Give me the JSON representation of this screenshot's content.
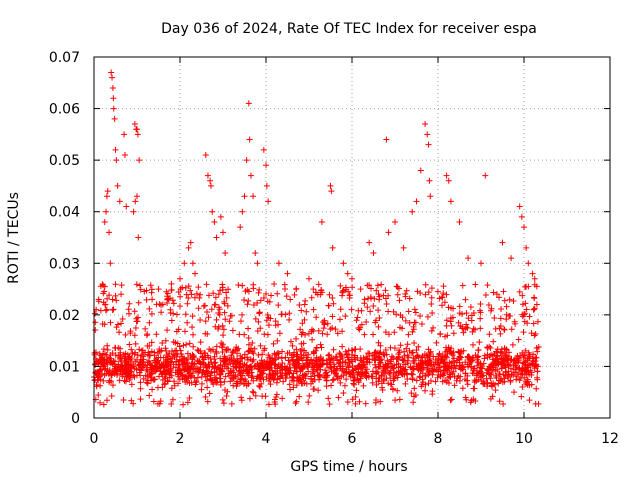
{
  "chart_data": {
    "type": "scatter",
    "title": "Day 036 of 2024, Rate Of TEC Index for receiver espa",
    "xlabel": "GPS time / hours",
    "ylabel": "ROTI / TECUs",
    "xlim": [
      0,
      12
    ],
    "ylim": [
      0,
      0.07
    ],
    "xticks": [
      0,
      2,
      4,
      6,
      8,
      10,
      12
    ],
    "yticks": [
      0,
      0.01,
      0.02,
      0.03,
      0.04,
      0.05,
      0.06,
      0.07
    ],
    "xtick_labels": [
      "0",
      "2",
      "4",
      "6",
      "8",
      "10",
      "12"
    ],
    "ytick_labels": [
      "0",
      "0.01",
      "0.02",
      "0.03",
      "0.04",
      "0.05",
      "0.06",
      "0.07"
    ],
    "grid": true,
    "marker": "plus",
    "color": "#ff0000",
    "series": [
      {
        "name": "ROTI",
        "x": [
          0.4,
          0.42,
          0.44,
          0.45,
          0.46,
          0.48,
          0.5,
          0.52,
          0.55,
          0.6,
          0.25,
          0.28,
          0.3,
          0.32,
          0.35,
          0.38,
          0.7,
          0.72,
          0.75,
          0.95,
          0.98,
          1.0,
          1.02,
          1.05,
          0.92,
          0.96,
          1.0,
          1.03,
          1.5,
          1.6,
          1.8,
          2.0,
          2.1,
          2.2,
          2.25,
          2.3,
          2.35,
          2.6,
          2.65,
          2.7,
          2.72,
          2.75,
          2.8,
          2.85,
          2.95,
          3.0,
          3.05,
          3.4,
          3.45,
          3.5,
          3.55,
          3.6,
          3.62,
          3.65,
          3.7,
          3.75,
          3.8,
          3.95,
          4.0,
          4.02,
          4.05,
          4.3,
          4.5,
          4.7,
          4.9,
          5.0,
          5.1,
          5.3,
          5.5,
          5.52,
          5.55,
          5.8,
          5.9,
          6.0,
          6.2,
          6.4,
          6.5,
          6.8,
          6.85,
          7.0,
          7.2,
          7.4,
          7.5,
          7.6,
          7.7,
          7.75,
          7.78,
          7.8,
          7.82,
          8.2,
          8.25,
          8.3,
          8.5,
          8.7,
          9.0,
          9.1,
          9.5,
          9.7,
          9.9,
          9.95,
          10.0,
          10.05,
          10.1,
          10.2,
          10.25,
          10.3
        ],
        "values": [
          0.067,
          0.066,
          0.064,
          0.062,
          0.06,
          0.058,
          0.052,
          0.05,
          0.045,
          0.042,
          0.038,
          0.04,
          0.043,
          0.044,
          0.036,
          0.03,
          0.055,
          0.051,
          0.041,
          0.057,
          0.056,
          0.056,
          0.055,
          0.05,
          0.04,
          0.042,
          0.043,
          0.035,
          0.025,
          0.022,
          0.026,
          0.027,
          0.03,
          0.033,
          0.034,
          0.03,
          0.028,
          0.051,
          0.047,
          0.046,
          0.045,
          0.04,
          0.038,
          0.035,
          0.039,
          0.036,
          0.032,
          0.037,
          0.04,
          0.043,
          0.05,
          0.061,
          0.054,
          0.047,
          0.043,
          0.032,
          0.03,
          0.052,
          0.049,
          0.045,
          0.042,
          0.03,
          0.028,
          0.025,
          0.022,
          0.027,
          0.025,
          0.038,
          0.045,
          0.044,
          0.033,
          0.03,
          0.028,
          0.027,
          0.025,
          0.034,
          0.032,
          0.054,
          0.036,
          0.038,
          0.033,
          0.04,
          0.042,
          0.048,
          0.057,
          0.055,
          0.053,
          0.046,
          0.043,
          0.047,
          0.046,
          0.042,
          0.038,
          0.031,
          0.03,
          0.047,
          0.034,
          0.031,
          0.041,
          0.039,
          0.037,
          0.033,
          0.03,
          0.028,
          0.027,
          0.022
        ]
      }
    ],
    "dense_band": {
      "description": "Most samples, x 0.0-10.35 h, ROTI roughly 0.003-0.025 TECUs",
      "x_range": [
        0.0,
        10.35
      ],
      "core_range": [
        0.004,
        0.016
      ],
      "upper_range": [
        0.016,
        0.026
      ],
      "sample_count": 2400
    }
  }
}
